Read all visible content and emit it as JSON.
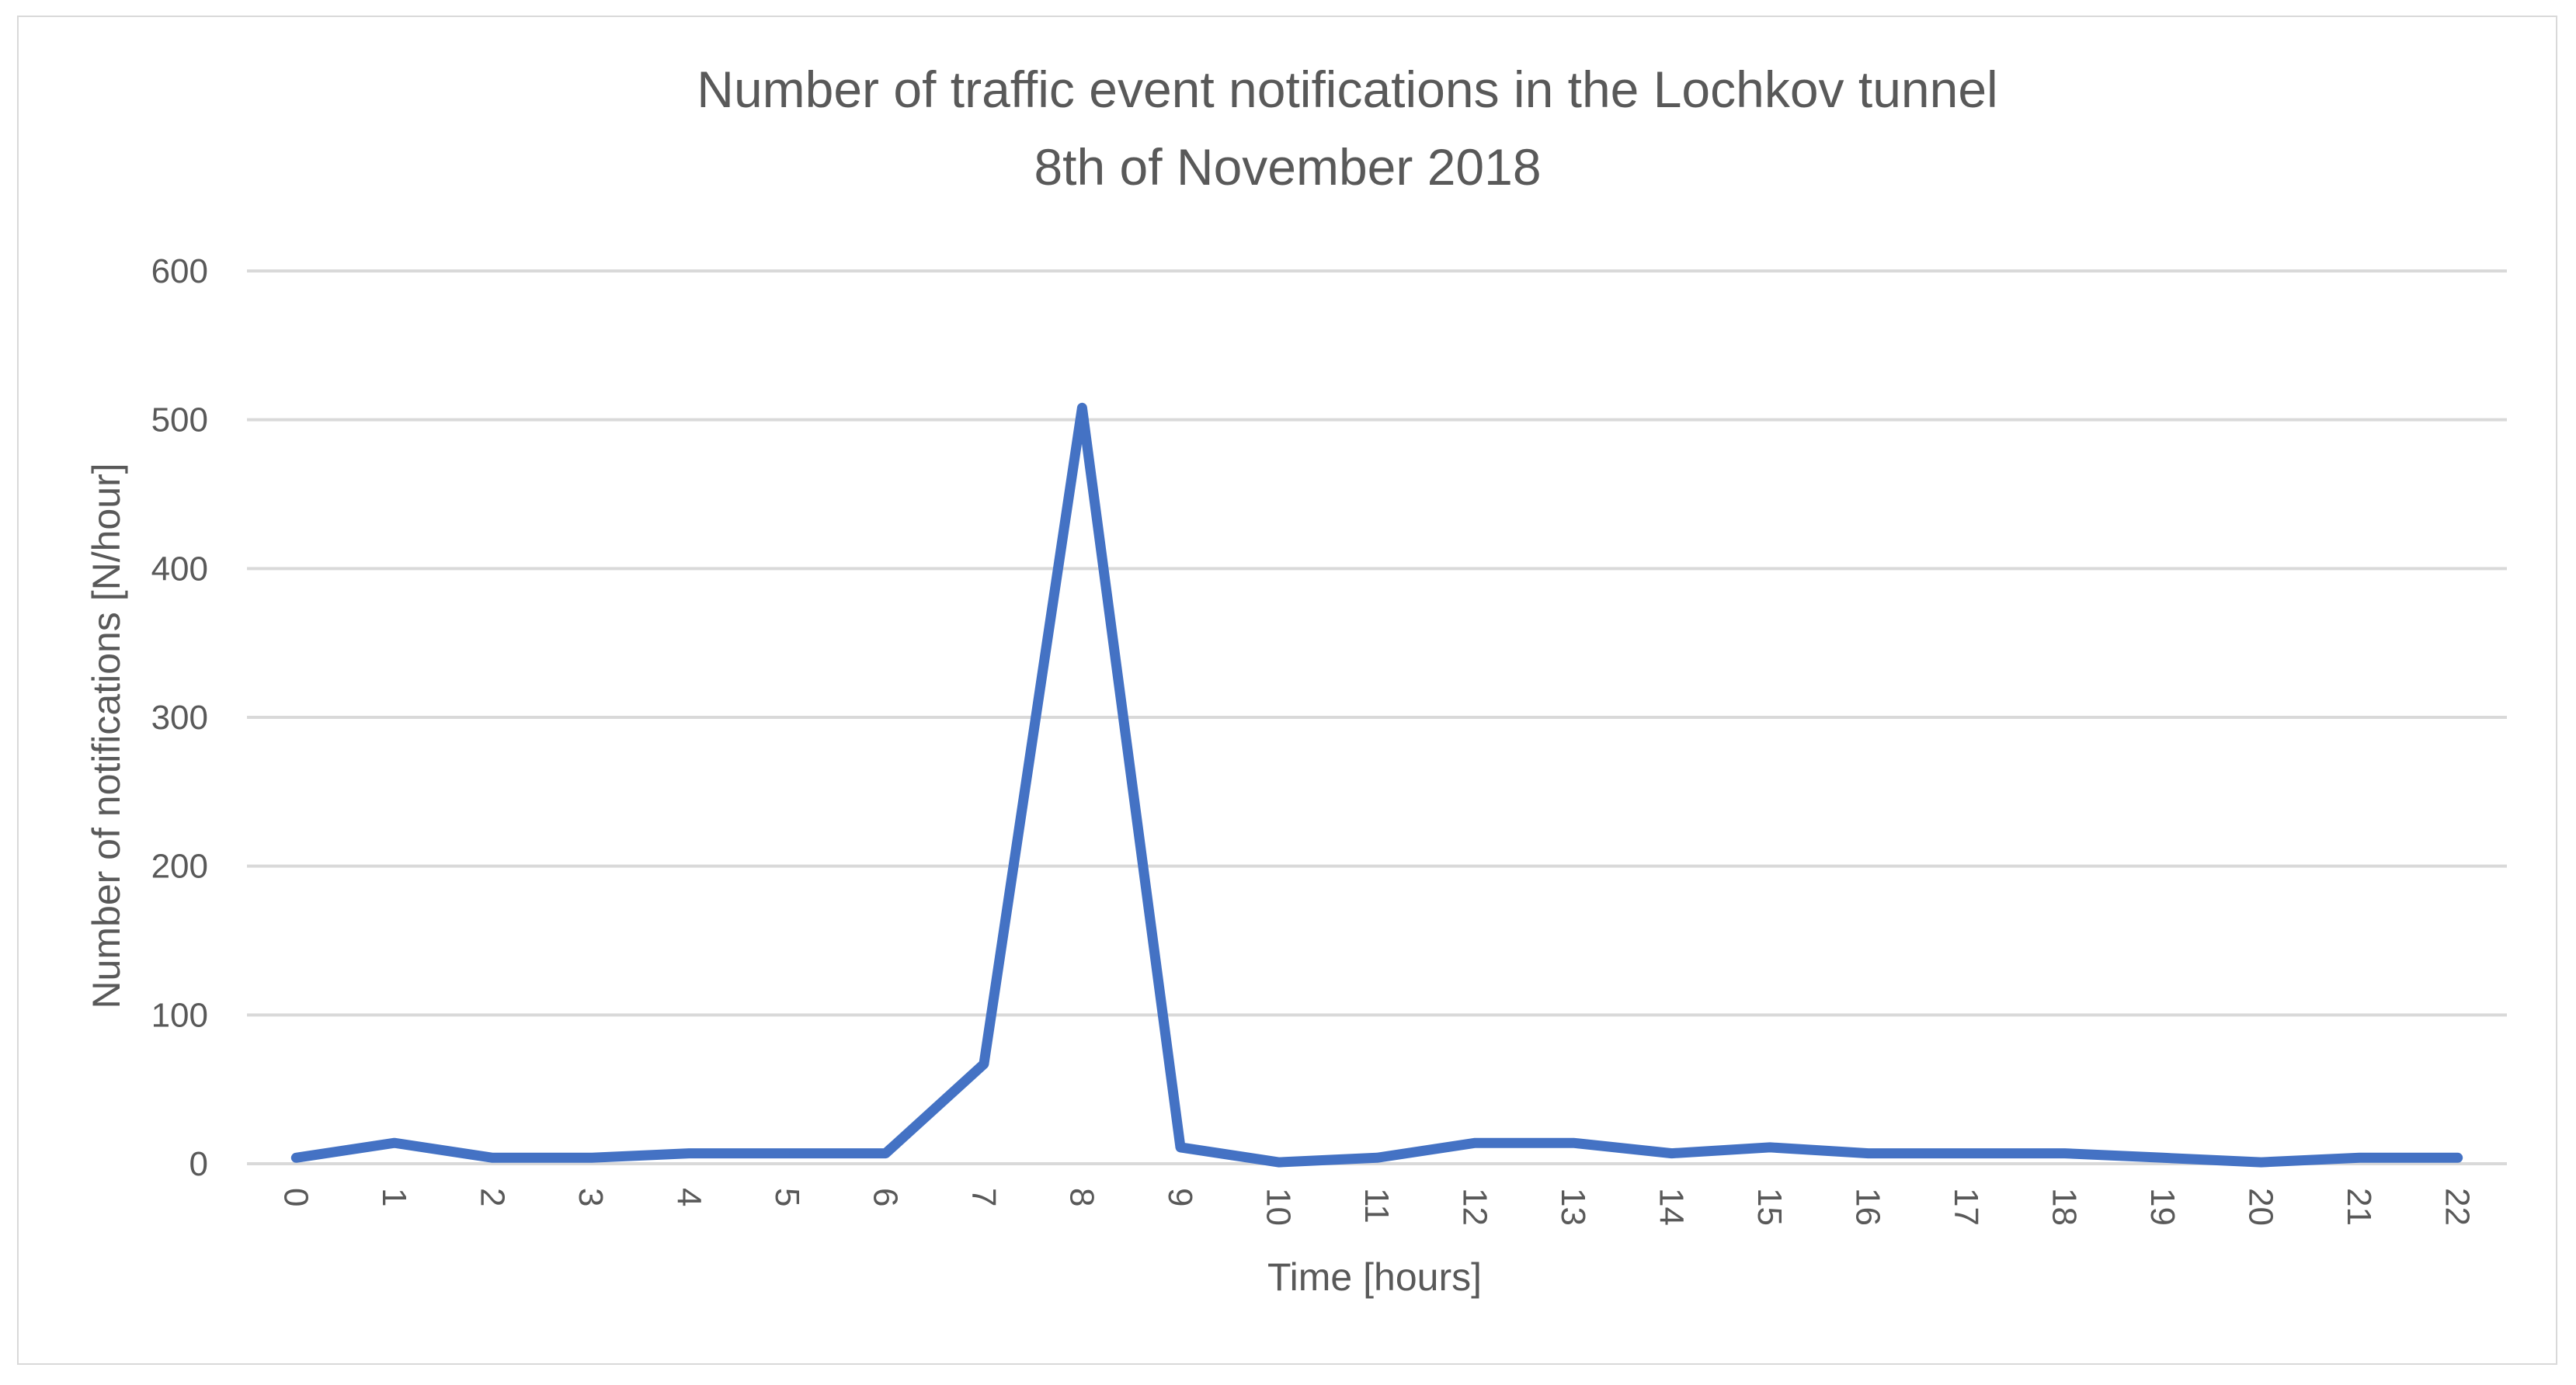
{
  "chart_data": {
    "type": "line",
    "title": "Number of traffic event notifications in the Lochkov tunnel",
    "subtitle": "8th of November 2018",
    "xlabel": "Time [hours]",
    "ylabel": "Number of notifications [N/hour]",
    "x": [
      0,
      1,
      2,
      3,
      4,
      5,
      6,
      7,
      8,
      9,
      10,
      11,
      12,
      13,
      14,
      15,
      16,
      17,
      18,
      19,
      20,
      21,
      22
    ],
    "x_tick_labels": [
      "0",
      "1",
      "2",
      "3",
      "4",
      "5",
      "6",
      "7",
      "8",
      "9",
      "10",
      "11",
      "12",
      "13",
      "14",
      "15",
      "16",
      "17",
      "18",
      "19",
      "20",
      "21",
      "22"
    ],
    "series": [
      {
        "values": [
          4,
          14,
          4,
          4,
          7,
          7,
          7,
          67,
          508,
          11,
          1,
          4,
          14,
          14,
          7,
          11,
          7,
          7,
          7,
          4,
          1,
          4,
          4
        ],
        "color": "#4472c4"
      }
    ],
    "ylim": [
      0,
      600
    ],
    "y_ticks": [
      0,
      100,
      200,
      300,
      400,
      500,
      600
    ],
    "y_tick_labels": [
      "0",
      "100",
      "200",
      "300",
      "400",
      "500",
      "600"
    ],
    "grid": true,
    "gridline_color": "#d9d9d9",
    "text_color": "#595959",
    "legend": "none"
  }
}
